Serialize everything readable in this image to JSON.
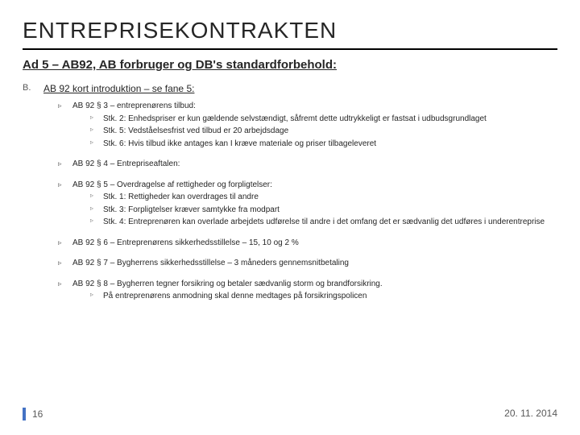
{
  "colors": {
    "background": "#ffffff",
    "text": "#262626",
    "muted": "#595959",
    "accent": "#4472c4",
    "rule": "#000000"
  },
  "typography": {
    "title_fontsize": 28,
    "subtitle_fontsize": 15,
    "body_fontsize": 10,
    "intro_fontsize": 12,
    "footer_fontsize": 12
  },
  "title": "ENTREPRISEKONTRAKTEN",
  "subtitle": "Ad 5 – AB92, AB forbruger og DB's standardforbehold:",
  "list_marker": "B.",
  "intro": "AB 92 kort introduktion – se fane 5:",
  "items": [
    {
      "label": "AB 92 § 3 – entreprenørens tilbud:",
      "subs": [
        "Stk. 2: Enhedspriser er kun gældende selvstændigt, såfremt dette udtrykkeligt er fastsat i udbudsgrundlaget",
        "Stk. 5: Vedståelsesfrist ved tilbud er 20 arbejdsdage",
        "Stk. 6: Hvis tilbud ikke antages kan I kræve materiale og priser tilbageleveret"
      ]
    },
    {
      "label": "AB 92 § 4 – Entrepriseaftalen:",
      "subs": []
    },
    {
      "label": "AB 92 § 5 – Overdragelse af rettigheder og forpligtelser:",
      "subs": [
        "Stk. 1: Rettigheder kan overdrages til andre",
        "Stk. 3: Forpligtelser kræver samtykke fra modpart",
        "Stk. 4: Entreprenøren kan overlade arbejdets udførelse til andre i det omfang det er sædvanlig det udføres i underentreprise"
      ]
    },
    {
      "label": "AB 92 § 6 – Entreprenørens sikkerhedsstillelse – 15, 10 og 2 %",
      "subs": []
    },
    {
      "label": "AB 92 § 7 – Bygherrens sikkerhedsstillelse – 3 måneders gennemsnitbetaling",
      "subs": []
    },
    {
      "label": "AB 92 § 8 – Bygherren tegner forsikring og betaler sædvanlig storm og brandforsikring.",
      "subs": [
        "På entreprenørens anmodning skal denne medtages på forsikringspolicen"
      ]
    }
  ],
  "footer": {
    "page": "16",
    "date": "20. 11. 2014"
  }
}
